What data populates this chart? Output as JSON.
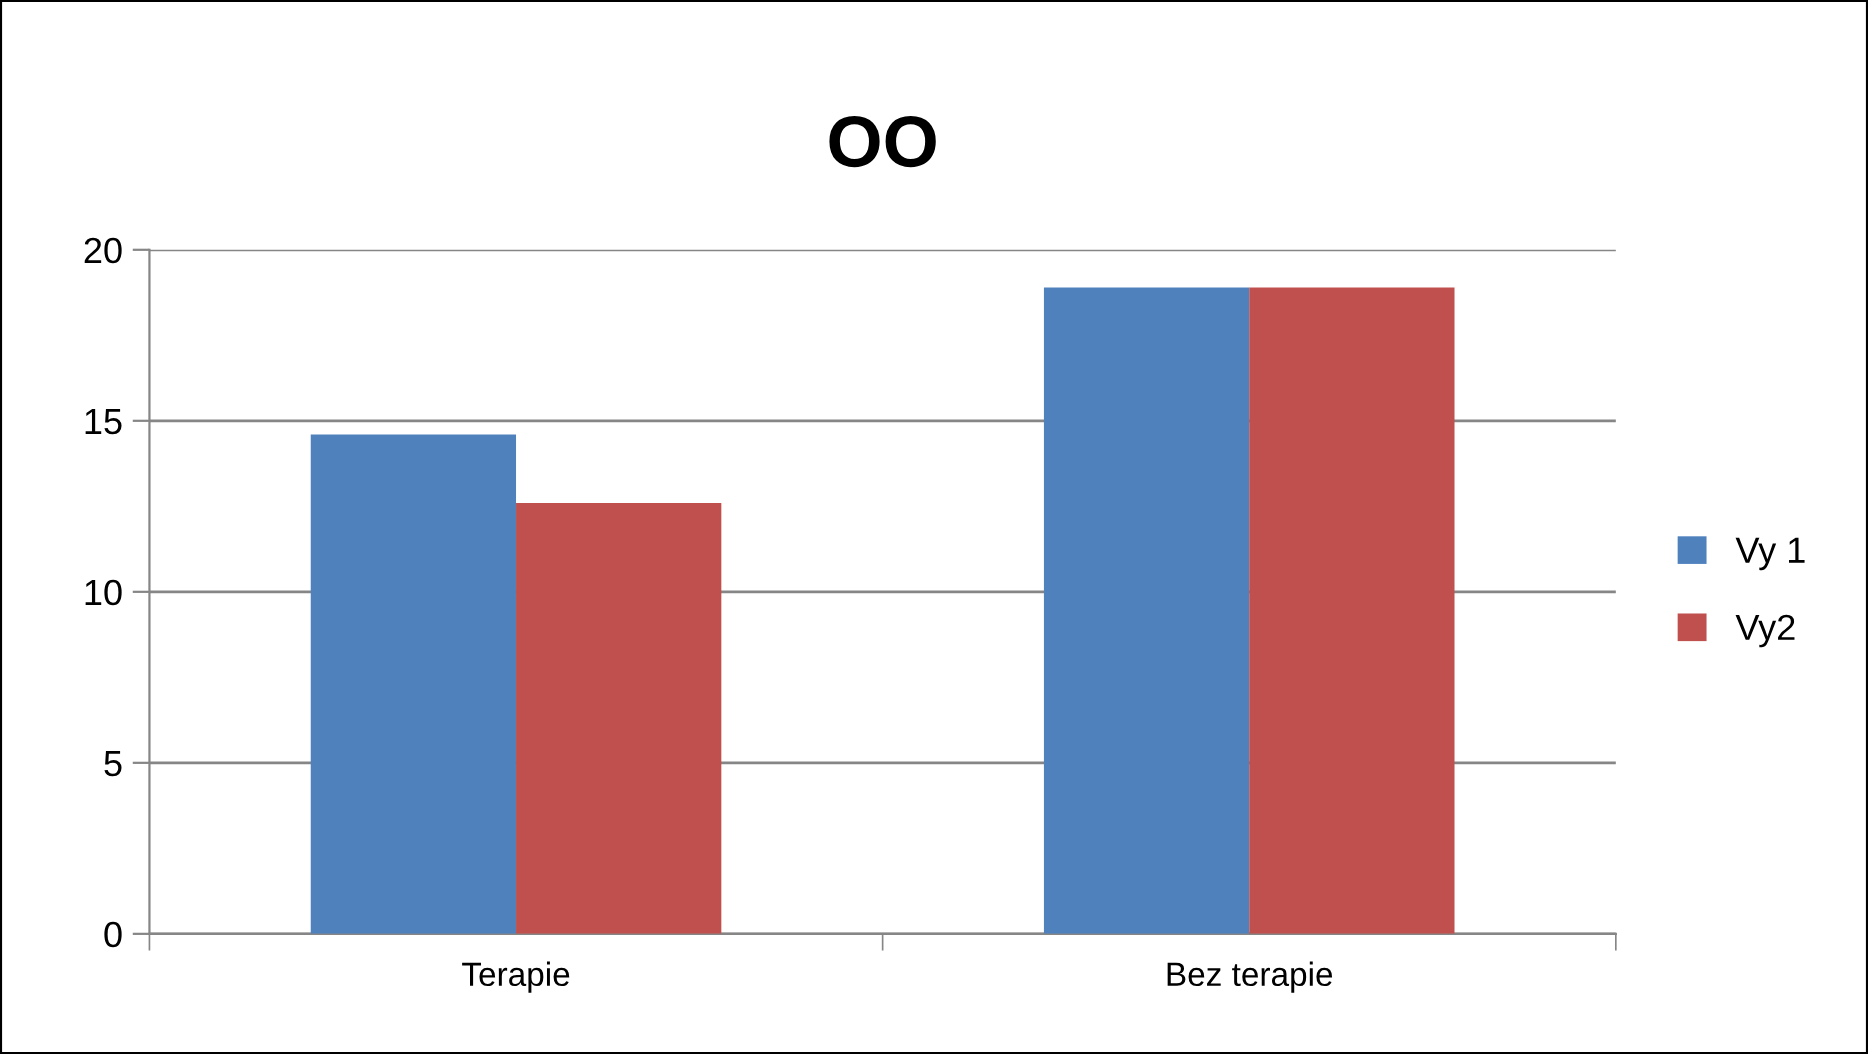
{
  "chart_data": {
    "type": "bar",
    "title": "OO",
    "categories": [
      "Terapie",
      "Bez terapie"
    ],
    "series": [
      {
        "name": "Vy 1",
        "color": "#4f81bd",
        "values": [
          14.6,
          18.9
        ]
      },
      {
        "name": "Vy2",
        "color": "#c0504d",
        "values": [
          12.6,
          18.9
        ]
      }
    ],
    "ylim": [
      0,
      20
    ],
    "yticks": [
      0,
      5,
      10,
      15,
      20
    ],
    "grid": "y",
    "legend": "right"
  }
}
